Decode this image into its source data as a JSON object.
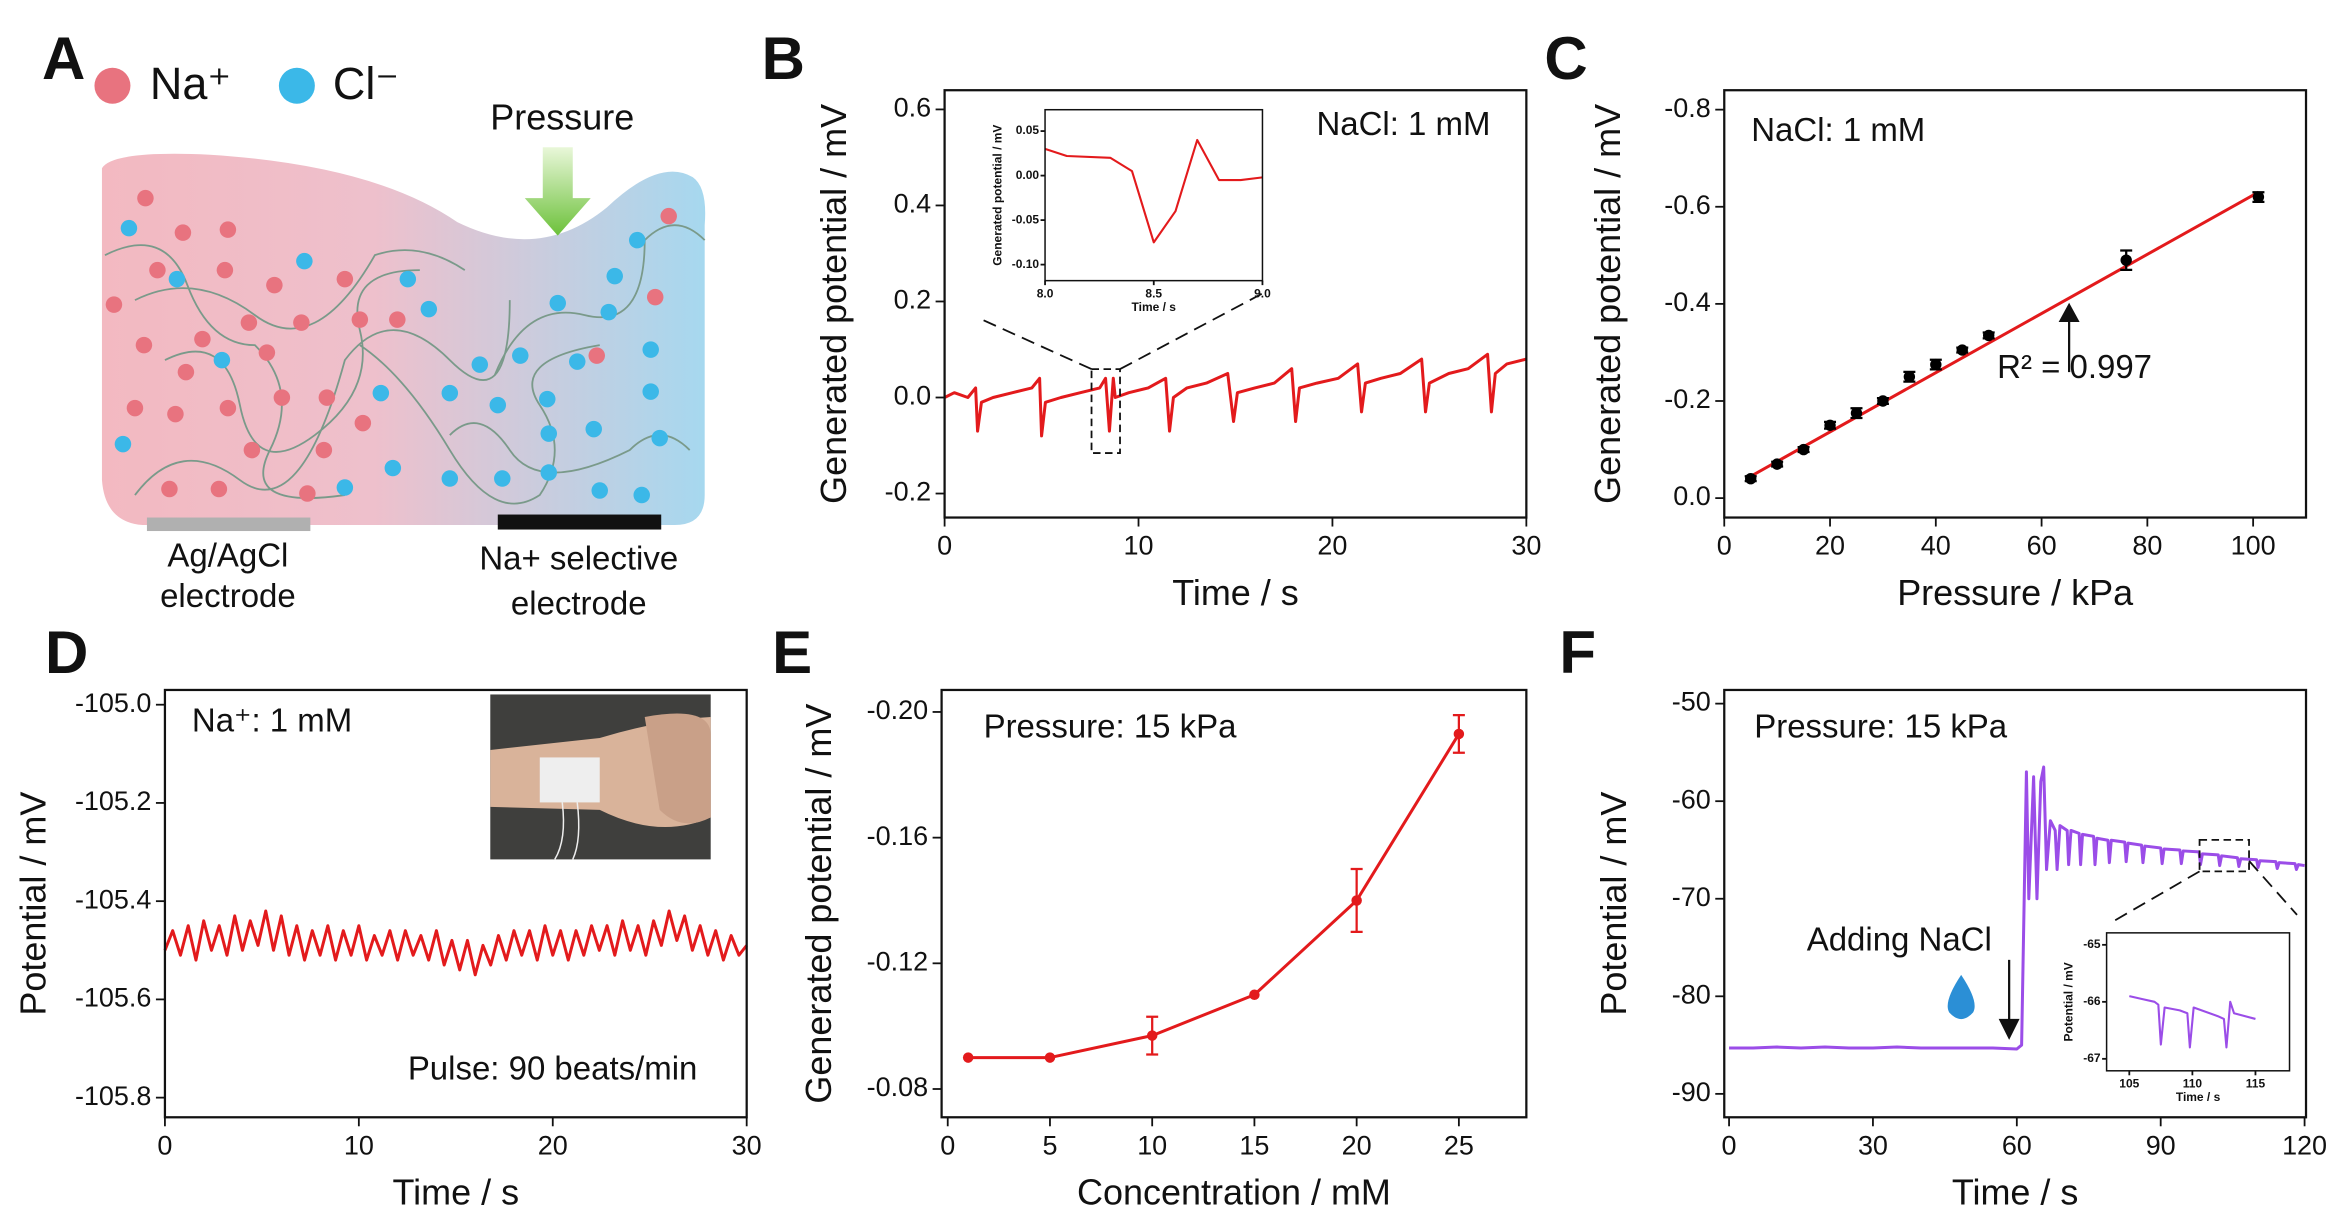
{
  "schematic": {
    "panel": "A",
    "ions": [
      "Na⁺",
      "Cl⁻"
    ],
    "force": "Pressure",
    "electrodes": [
      [
        "Ag/AgCl",
        "electrode"
      ],
      [
        "Na+ selective",
        "electrode"
      ]
    ]
  },
  "chart_data": [
    {
      "type": "line",
      "panel": "B",
      "xlabel": "Time / s",
      "ylabel": "Generated potential / mV",
      "xlim": [
        0,
        30
      ],
      "ylim": [
        -0.25,
        0.64
      ],
      "xticks": [
        0,
        10,
        20,
        30
      ],
      "yticks": [
        -0.2,
        {
          "value": 0,
          "label": "0.0"
        },
        0.2,
        0.4,
        0.6
      ],
      "annotations": [
        "NaCl: 1 mM"
      ],
      "series": [
        {
          "color": "#e31a1c",
          "x": [
            0,
            0.5,
            1.2,
            1.6,
            1.7,
            1.9,
            2.5,
            3.5,
            4.5,
            4.9,
            5.0,
            5.2,
            6,
            7,
            8,
            8.3,
            8.5,
            8.7,
            8.8,
            9.5,
            10.5,
            11.4,
            11.6,
            11.8,
            12.5,
            13.5,
            14.6,
            14.9,
            15.1,
            16,
            17,
            17.9,
            18.1,
            18.3,
            19.2,
            20.3,
            21.3,
            21.5,
            21.7,
            22.5,
            23.5,
            24.6,
            24.8,
            25,
            26,
            27,
            28,
            28.2,
            28.4,
            29,
            30
          ],
          "values": [
            0,
            0.01,
            0,
            0.02,
            -0.07,
            -0.01,
            0,
            0.01,
            0.02,
            0.04,
            -0.08,
            -0.01,
            0,
            0.01,
            0.02,
            0.04,
            -0.07,
            0.04,
            0,
            0.01,
            0.02,
            0.04,
            -0.07,
            0,
            0.02,
            0.03,
            0.05,
            -0.05,
            0.01,
            0.02,
            0.03,
            0.06,
            -0.05,
            0.02,
            0.03,
            0.04,
            0.07,
            -0.03,
            0.03,
            0.04,
            0.05,
            0.08,
            -0.03,
            0.03,
            0.05,
            0.06,
            0.09,
            -0.03,
            0.05,
            0.07,
            0.08
          ]
        }
      ],
      "inset": {
        "type": "line",
        "xlabel": "Time / s",
        "ylabel": "Generated potential / mV",
        "xlim": [
          8,
          9
        ],
        "ylim": [
          -0.118,
          0.074
        ],
        "xticks": [
          {
            "value": 8,
            "label": "8.0"
          },
          8.5,
          {
            "value": 9,
            "label": "9.0"
          }
        ],
        "yticks": [
          {
            "value": -0.1,
            "label": "-0.10"
          },
          -0.05,
          {
            "value": 0,
            "label": "0.00"
          },
          0.05
        ],
        "series": [
          {
            "color": "#e31a1c",
            "x": [
              8,
              8.1,
              8.3,
              8.4,
              8.5,
              8.6,
              8.7,
              8.8,
              8.9,
              9
            ],
            "values": [
              0.03,
              0.022,
              0.02,
              0.005,
              -0.075,
              -0.04,
              0.04,
              -0.005,
              -0.005,
              -0.002
            ]
          }
        ]
      }
    },
    {
      "type": "scatter",
      "panel": "C",
      "xlabel": "Pressure / kPa",
      "ylabel": "Generated potential / mV",
      "xlim": [
        0,
        110
      ],
      "ylim": [
        0.04,
        -0.84
      ],
      "xticks": [
        0,
        20,
        40,
        60,
        80,
        100
      ],
      "yticks": [
        {
          "value": 0,
          "label": "0.0"
        },
        -0.2,
        -0.4,
        -0.6,
        -0.8
      ],
      "annotations": [
        "NaCl: 1 mM",
        "R² = 0.997"
      ],
      "series": [
        {
          "color": "#000000",
          "x": [
            5,
            10,
            15,
            20,
            25,
            30,
            35,
            40,
            45,
            50,
            76,
            101
          ],
          "values": [
            -0.04,
            -0.07,
            -0.1,
            -0.15,
            -0.175,
            -0.2,
            -0.25,
            -0.275,
            -0.305,
            -0.335,
            -0.49,
            -0.62
          ],
          "errors": [
            0.005,
            0.005,
            0.005,
            0.007,
            0.01,
            0.006,
            0.01,
            0.01,
            0.005,
            0.006,
            0.02,
            0.01
          ]
        }
      ],
      "fit": {
        "color": "#e31a1c",
        "x": [
          5,
          101
        ],
        "values": [
          -0.045,
          -0.63
        ]
      }
    },
    {
      "type": "line",
      "panel": "D",
      "xlabel": "Time / s",
      "ylabel": "Potential / mV",
      "xlim": [
        0,
        30
      ],
      "ylim": [
        -105.84,
        -104.97
      ],
      "xticks": [
        0,
        10,
        20,
        30
      ],
      "yticks": [
        {
          "value": -105,
          "label": "-105.0"
        },
        -105.2,
        -105.4,
        -105.6,
        -105.8
      ],
      "annotations": [
        "Na⁺: 1 mM",
        "Pulse: 90 beats/min"
      ],
      "series": [
        {
          "color": "#e31a1c",
          "x": [
            0,
            0.4,
            0.8,
            1.2,
            1.6,
            2,
            2.4,
            2.8,
            3.2,
            3.6,
            4,
            4.4,
            4.8,
            5.2,
            5.6,
            6,
            6.4,
            6.8,
            7.2,
            7.6,
            8,
            8.4,
            8.8,
            9.2,
            9.6,
            10,
            10.4,
            10.8,
            11.2,
            11.6,
            12,
            12.4,
            12.8,
            13.2,
            13.6,
            14,
            14.4,
            14.8,
            15.2,
            15.6,
            16,
            16.4,
            16.8,
            17.2,
            17.6,
            18,
            18.4,
            18.8,
            19.2,
            19.6,
            20,
            20.4,
            20.8,
            21.2,
            21.6,
            22,
            22.4,
            22.8,
            23.2,
            23.6,
            24,
            24.4,
            24.8,
            25.2,
            25.6,
            26,
            26.4,
            26.8,
            27.2,
            27.6,
            28,
            28.4,
            28.8,
            29.2,
            29.6,
            30
          ],
          "values": [
            -105.5,
            -105.46,
            -105.51,
            -105.45,
            -105.52,
            -105.44,
            -105.5,
            -105.45,
            -105.51,
            -105.43,
            -105.5,
            -105.44,
            -105.49,
            -105.42,
            -105.5,
            -105.43,
            -105.51,
            -105.45,
            -105.52,
            -105.46,
            -105.51,
            -105.45,
            -105.52,
            -105.46,
            -105.51,
            -105.45,
            -105.52,
            -105.47,
            -105.51,
            -105.46,
            -105.52,
            -105.46,
            -105.51,
            -105.47,
            -105.52,
            -105.46,
            -105.53,
            -105.48,
            -105.54,
            -105.48,
            -105.55,
            -105.49,
            -105.53,
            -105.47,
            -105.52,
            -105.46,
            -105.51,
            -105.46,
            -105.52,
            -105.45,
            -105.51,
            -105.46,
            -105.52,
            -105.46,
            -105.51,
            -105.45,
            -105.5,
            -105.45,
            -105.51,
            -105.44,
            -105.5,
            -105.45,
            -105.51,
            -105.44,
            -105.49,
            -105.42,
            -105.48,
            -105.43,
            -105.5,
            -105.45,
            -105.51,
            -105.46,
            -105.52,
            -105.47,
            -105.51,
            -105.49
          ]
        }
      ]
    },
    {
      "type": "line",
      "panel": "E",
      "xlabel": "Concentration / mM",
      "ylabel": "Generated potential / mV",
      "xlim": [
        -0.3,
        28.3
      ],
      "ylim": [
        -0.071,
        -0.207
      ],
      "xticks": [
        0,
        5,
        10,
        15,
        20,
        25
      ],
      "yticks": [
        {
          "value": -0.08,
          "label": "-0.08"
        },
        {
          "value": -0.12,
          "label": "-0.12"
        },
        {
          "value": -0.16,
          "label": "-0.16"
        },
        {
          "value": -0.2,
          "label": "-0.20"
        }
      ],
      "annotations": [
        "Pressure: 15 kPa"
      ],
      "series": [
        {
          "color": "#e31a1c",
          "markers": true,
          "x": [
            1,
            5,
            10,
            15,
            20,
            25
          ],
          "values": [
            -0.09,
            -0.09,
            -0.097,
            -0.11,
            -0.14,
            -0.193
          ],
          "errors": [
            null,
            null,
            0.006,
            null,
            0.01,
            0.006
          ]
        }
      ]
    },
    {
      "type": "line",
      "panel": "F",
      "xlabel": "Time / s",
      "ylabel": "Potential / mV",
      "xlim": [
        -1,
        120.3
      ],
      "ylim": [
        -92.4,
        -48.6
      ],
      "xticks": [
        0,
        30,
        60,
        90,
        120
      ],
      "yticks": [
        -90,
        -80,
        -70,
        -60,
        -50
      ],
      "annotations": [
        "Pressure: 15 kPa",
        "Adding NaCl"
      ],
      "series": [
        {
          "color": "#9b4de8",
          "x": [
            0,
            5,
            10,
            15,
            20,
            25,
            30,
            35,
            40,
            45,
            50,
            55,
            60,
            61,
            62,
            62.5,
            63.5,
            64.2,
            65,
            65.6,
            66.2,
            67,
            68,
            68.4,
            69,
            70.5,
            70.8,
            71.3,
            73,
            73.3,
            73.7,
            76,
            76.3,
            76.7,
            79,
            79.3,
            79.7,
            82.5,
            82.8,
            83.2,
            86,
            86.3,
            86.7,
            90,
            90.3,
            90.7,
            94,
            94.3,
            94.7,
            98,
            98.3,
            98.7,
            102,
            102.3,
            102.7,
            106,
            106.3,
            106.7,
            110,
            110.3,
            110.7,
            114,
            114.3,
            114.7,
            118,
            118.3,
            118.7,
            120
          ],
          "values": [
            -85.3,
            -85.3,
            -85.2,
            -85.3,
            -85.2,
            -85.3,
            -85.3,
            -85.2,
            -85.3,
            -85.3,
            -85.3,
            -85.3,
            -85.4,
            -85,
            -57,
            -70,
            -57.5,
            -70,
            -58,
            -56.5,
            -67,
            -62,
            -63,
            -67,
            -62.5,
            -63,
            -66.5,
            -63,
            -63.3,
            -66.5,
            -63.4,
            -63.6,
            -66.5,
            -63.8,
            -64,
            -66.3,
            -64,
            -64.2,
            -66.2,
            -64.3,
            -64.5,
            -66.3,
            -64.6,
            -64.8,
            -66.4,
            -64.9,
            -65,
            -66.4,
            -65.1,
            -65.2,
            -66.5,
            -65.4,
            -65.5,
            -66.6,
            -65.6,
            -65.8,
            -66.7,
            -65.9,
            -66,
            -66.8,
            -66.1,
            -66.2,
            -66.9,
            -66.3,
            -66.4,
            -67,
            -66.5,
            -66.6
          ]
        }
      ],
      "inset": {
        "type": "line",
        "xlabel": "Time / s",
        "ylabel": "Potential / mV",
        "xlim": [
          103.2,
          117.7
        ],
        "ylim": [
          -67.21,
          -64.79
        ],
        "xticks": [
          105,
          110,
          115
        ],
        "yticks": [
          -67,
          -66,
          -65
        ],
        "series": [
          {
            "color": "#9b4de8",
            "x": [
              105,
              106,
              107,
              107.3,
              107.5,
              107.8,
              109,
              109.6,
              109.8,
              110.1,
              112,
              112.5,
              112.7,
              113,
              113.3,
              115
            ],
            "values": [
              -65.9,
              -65.95,
              -66,
              -66.05,
              -66.75,
              -66.1,
              -66.15,
              -66.2,
              -66.8,
              -66.1,
              -66.25,
              -66.3,
              -66.8,
              -66,
              -66.2,
              -66.3
            ]
          }
        ]
      }
    }
  ]
}
